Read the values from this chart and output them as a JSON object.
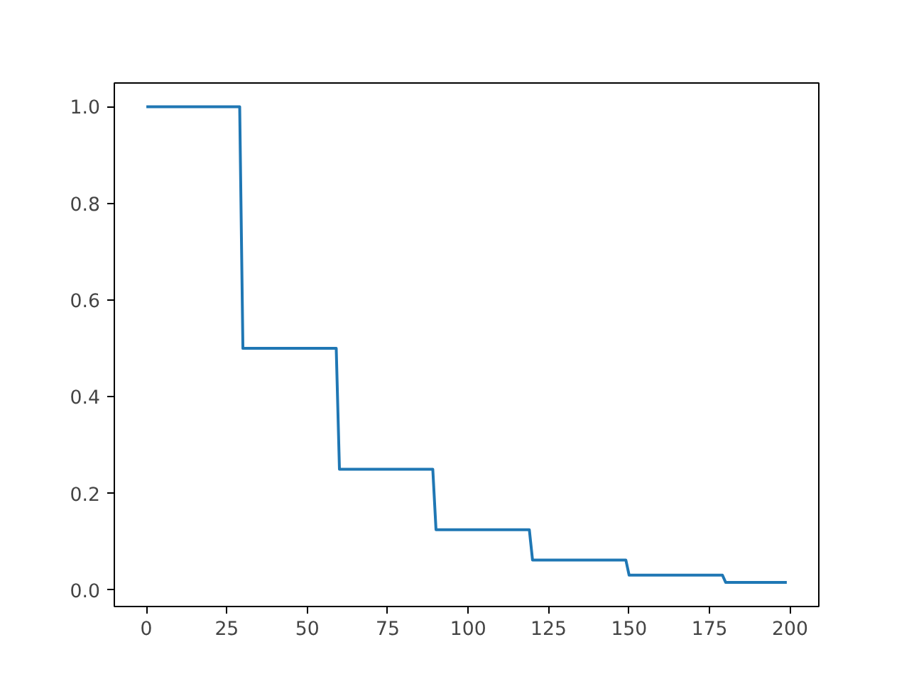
{
  "chart_data": {
    "type": "line",
    "x": [
      0,
      29,
      30,
      59,
      60,
      89,
      90,
      119,
      120,
      149,
      150,
      179,
      180,
      199
    ],
    "series": [
      {
        "color": "#1f77b4",
        "values": [
          1.0,
          1.0,
          0.5,
          0.5,
          0.25,
          0.25,
          0.125,
          0.125,
          0.062,
          0.062,
          0.031,
          0.031,
          0.016,
          0.016
        ]
      }
    ],
    "xlim": [
      -9.95,
      208.95
    ],
    "ylim": [
      -0.034,
      1.049
    ],
    "xticks": [
      0,
      25,
      50,
      75,
      100,
      125,
      150,
      175,
      200
    ],
    "yticks": [
      {
        "value": 0,
        "label": "0.0"
      },
      {
        "value": 0.2,
        "label": "0.2"
      },
      {
        "value": 0.4,
        "label": "0.4"
      },
      {
        "value": 0.6,
        "label": "0.6"
      },
      {
        "value": 0.8,
        "label": "0.8"
      },
      {
        "value": 1.0,
        "label": "1.0"
      }
    ],
    "grid": false,
    "marker": "none",
    "line_style": "solid"
  }
}
